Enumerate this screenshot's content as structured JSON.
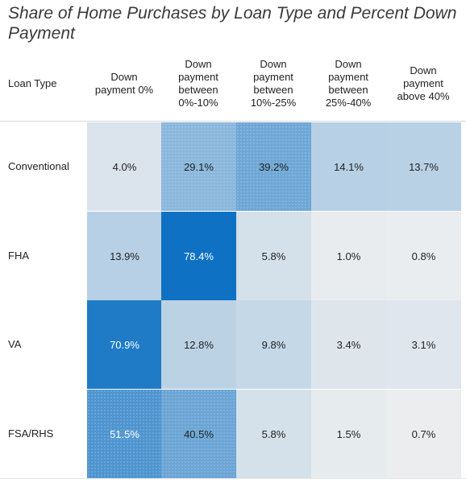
{
  "chart_data": {
    "type": "heatmap",
    "title": "Share of Home Purchases by Loan Type and Percent Down Payment",
    "row_header": "Loan Type",
    "columns": [
      "Down payment 0%",
      "Down payment between 0%-10%",
      "Down payment between 10%-25%",
      "Down payment between 25%-40%",
      "Down payment above 40%"
    ],
    "column_lines": [
      [
        "Down",
        "payment 0%"
      ],
      [
        "Down",
        "payment",
        "between",
        "0%-10%"
      ],
      [
        "Down",
        "payment",
        "between",
        "10%-25%"
      ],
      [
        "Down",
        "payment",
        "between",
        "25%-40%"
      ],
      [
        "Down",
        "payment",
        "above 40%"
      ]
    ],
    "rows": [
      "Conventional",
      "FHA",
      "VA",
      "FSA/RHS"
    ],
    "values": [
      [
        4.0,
        29.1,
        39.2,
        14.1,
        13.7
      ],
      [
        13.9,
        78.4,
        5.8,
        1.0,
        0.8
      ],
      [
        70.9,
        12.8,
        9.8,
        3.4,
        3.1
      ],
      [
        51.5,
        40.5,
        5.8,
        1.5,
        0.7
      ]
    ],
    "labels": [
      [
        "4.0%",
        "29.1%",
        "39.2%",
        "14.1%",
        "13.7%"
      ],
      [
        "13.9%",
        "78.4%",
        "5.8%",
        "1.0%",
        "0.8%"
      ],
      [
        "70.9%",
        "12.8%",
        "9.8%",
        "3.4%",
        "3.1%"
      ],
      [
        "51.5%",
        "40.5%",
        "5.8%",
        "1.5%",
        "0.7%"
      ]
    ],
    "value_unit": "%",
    "color_scale": {
      "low": "#f0f0f0",
      "high": "#0a6fc2"
    }
  }
}
